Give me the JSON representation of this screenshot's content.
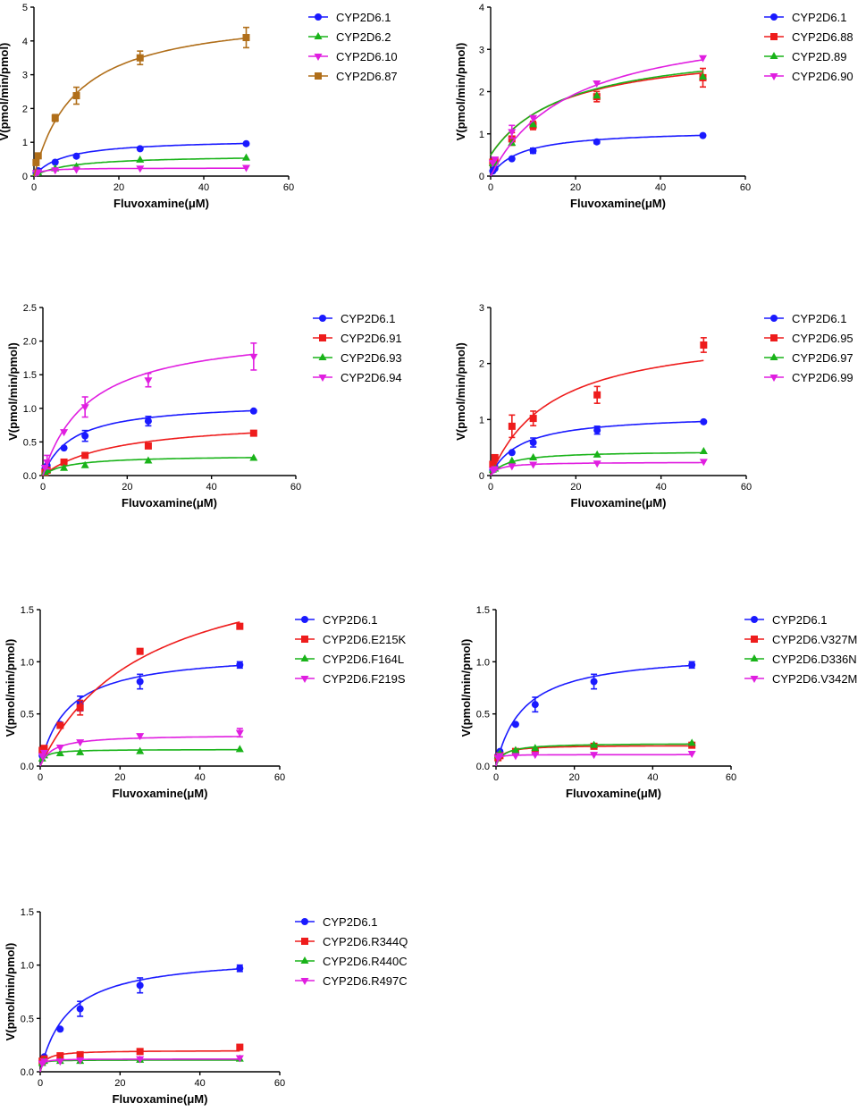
{
  "chart_data": [
    {
      "type": "line",
      "xlabel": "Fluvoxamine(μM)",
      "ylabel": "V(pmol/min/pmol)",
      "xlim": [
        0,
        60
      ],
      "ylim": [
        0,
        5
      ],
      "xticks": [
        0,
        20,
        40,
        60
      ],
      "yticks": [
        0,
        1,
        2,
        3,
        4,
        5
      ],
      "x": [
        0.5,
        1,
        5,
        10,
        25,
        50
      ],
      "series": [
        {
          "name": "CYP2D6.1",
          "color": "#1a1aff",
          "marker": "circle",
          "values": [
            0.1,
            0.16,
            0.41,
            0.59,
            0.81,
            0.96
          ],
          "errors": [
            0,
            0,
            0,
            0,
            0,
            0
          ],
          "vmax": 1.1,
          "km": 7.0,
          "fit_start": 0
        },
        {
          "name": "CYP2D6.2",
          "color": "#19b319",
          "marker": "triangle",
          "values": [
            0.08,
            0.1,
            0.22,
            0.28,
            0.48,
            0.54
          ],
          "errors": [
            0,
            0,
            0,
            0,
            0,
            0
          ],
          "vmax": 0.62,
          "km": 8.5,
          "fit_start": 0
        },
        {
          "name": "CYP2D6.10",
          "color": "#e01ee0",
          "marker": "tridown",
          "values": [
            0.1,
            0.12,
            0.18,
            0.2,
            0.23,
            0.25
          ],
          "errors": [
            0,
            0,
            0,
            0,
            0,
            0
          ],
          "vmax": 0.24,
          "km": 1.5,
          "fit_start": 0
        },
        {
          "name": "CYP2D6.87",
          "color": "#b06e19",
          "marker": "square",
          "values": [
            0.4,
            0.6,
            1.72,
            2.38,
            3.5,
            4.1
          ],
          "errors": [
            0,
            0,
            0.1,
            0.25,
            0.2,
            0.3
          ],
          "vmax": 4.9,
          "km": 10.0,
          "fit_start": 0
        }
      ]
    },
    {
      "type": "line",
      "xlabel": "Fluvoxamine(μM)",
      "ylabel": "V(pmol/min/pmol)",
      "xlim": [
        0,
        60
      ],
      "ylim": [
        0,
        4
      ],
      "xticks": [
        0,
        20,
        40,
        60
      ],
      "yticks": [
        0,
        1,
        2,
        3,
        4
      ],
      "x": [
        0.5,
        1,
        5,
        10,
        25,
        50
      ],
      "series": [
        {
          "name": "CYP2D6.1",
          "color": "#1a1aff",
          "marker": "circle",
          "values": [
            0.12,
            0.18,
            0.41,
            0.6,
            0.81,
            0.96
          ],
          "errors": [
            0,
            0,
            0,
            0.06,
            0.04,
            0
          ],
          "vmax": 1.1,
          "km": 7.0,
          "fit_start": 0
        },
        {
          "name": "CYP2D6.88",
          "color": "#ee1c1c",
          "marker": "square",
          "values": [
            0.33,
            0.36,
            0.88,
            1.2,
            1.88,
            2.33
          ],
          "errors": [
            0,
            0,
            0.15,
            0.1,
            0.12,
            0.22
          ],
          "vmax": 3.1,
          "km": 17.0,
          "fit_start": 0.5
        },
        {
          "name": "CYP2D.89",
          "color": "#19b319",
          "marker": "triangle",
          "values": [
            0.3,
            0.33,
            0.78,
            1.22,
            1.9,
            2.35
          ],
          "errors": [
            0,
            0,
            0,
            0,
            0,
            0
          ],
          "vmax": 3.2,
          "km": 18.0,
          "fit_start": 0.5
        },
        {
          "name": "CYP2D6.90",
          "color": "#e01ee0",
          "marker": "tridown",
          "values": [
            0.32,
            0.4,
            1.05,
            1.38,
            2.2,
            2.8
          ],
          "errors": [
            0,
            0,
            0.15,
            0,
            0,
            0
          ],
          "vmax": 3.8,
          "km": 19.0,
          "fit_start": 0
        }
      ]
    },
    {
      "type": "line",
      "xlabel": "Fluvoxamine(μM)",
      "ylabel": "V(pmol/min/pmol)",
      "xlim": [
        0,
        60
      ],
      "ylim": [
        0,
        2.5
      ],
      "xticks": [
        0,
        20,
        40,
        60
      ],
      "yticks": [
        0.0,
        0.5,
        1.0,
        1.5,
        2.0,
        2.5
      ],
      "x": [
        0.5,
        1,
        5,
        10,
        25,
        50
      ],
      "series": [
        {
          "name": "CYP2D6.1",
          "color": "#1a1aff",
          "marker": "circle",
          "values": [
            0.1,
            0.15,
            0.41,
            0.59,
            0.81,
            0.96
          ],
          "errors": [
            0,
            0,
            0,
            0.08,
            0.07,
            0
          ],
          "vmax": 1.1,
          "km": 7.0,
          "fit_start": 0
        },
        {
          "name": "CYP2D6.91",
          "color": "#ee1c1c",
          "marker": "square",
          "values": [
            0.05,
            0.08,
            0.2,
            0.3,
            0.44,
            0.63
          ],
          "errors": [
            0,
            0,
            0,
            0,
            0,
            0
          ],
          "vmax": 0.85,
          "km": 17.0,
          "fit_start": 0
        },
        {
          "name": "CYP2D6.93",
          "color": "#19b319",
          "marker": "triangle",
          "values": [
            0.05,
            0.08,
            0.11,
            0.15,
            0.22,
            0.26
          ],
          "errors": [
            0,
            0,
            0,
            0,
            0,
            0
          ],
          "vmax": 0.3,
          "km": 6.0,
          "fit_start": 0
        },
        {
          "name": "CYP2D6.94",
          "color": "#e01ee0",
          "marker": "tridown",
          "values": [
            0.12,
            0.2,
            0.65,
            1.02,
            1.42,
            1.77
          ],
          "errors": [
            0,
            0.1,
            0,
            0.15,
            0.1,
            0.2
          ],
          "vmax": 2.2,
          "km": 11.0,
          "fit_start": 0
        }
      ]
    },
    {
      "type": "line",
      "xlabel": "Fluvoxamine(μM)",
      "ylabel": "V(pmol/min/pmol)",
      "xlim": [
        0,
        60
      ],
      "ylim": [
        0,
        3
      ],
      "xticks": [
        0,
        20,
        40,
        60
      ],
      "yticks": [
        0,
        1,
        2,
        3
      ],
      "x": [
        0.5,
        1,
        5,
        10,
        25,
        50
      ],
      "series": [
        {
          "name": "CYP2D6.1",
          "color": "#1a1aff",
          "marker": "circle",
          "values": [
            0.1,
            0.15,
            0.41,
            0.59,
            0.81,
            0.96
          ],
          "errors": [
            0,
            0,
            0,
            0.08,
            0.07,
            0
          ],
          "vmax": 1.1,
          "km": 7.0,
          "fit_start": 0
        },
        {
          "name": "CYP2D6.95",
          "color": "#ee1c1c",
          "marker": "square",
          "values": [
            0.2,
            0.32,
            0.88,
            1.02,
            1.44,
            2.33
          ],
          "errors": [
            0,
            0,
            0.2,
            0.13,
            0.15,
            0.13
          ],
          "vmax": 2.65,
          "km": 14.5,
          "fit_start": 0
        },
        {
          "name": "CYP2D6.97",
          "color": "#19b319",
          "marker": "triangle",
          "values": [
            0.1,
            0.12,
            0.26,
            0.32,
            0.37,
            0.43
          ],
          "errors": [
            0,
            0,
            0,
            0,
            0,
            0
          ],
          "vmax": 0.44,
          "km": 4.0,
          "fit_start": 0
        },
        {
          "name": "CYP2D6.99",
          "color": "#e01ee0",
          "marker": "tridown",
          "values": [
            0.1,
            0.12,
            0.17,
            0.2,
            0.22,
            0.25
          ],
          "errors": [
            0,
            0,
            0,
            0,
            0,
            0
          ],
          "vmax": 0.24,
          "km": 2.0,
          "fit_start": 0
        }
      ]
    },
    {
      "type": "line",
      "xlabel": "Fluvoxamine(μM)",
      "ylabel": "V(pmol/min/pmol)",
      "xlim": [
        0,
        60
      ],
      "ylim": [
        0,
        1.5
      ],
      "xticks": [
        0,
        20,
        40,
        60
      ],
      "yticks": [
        0.0,
        0.5,
        1.0,
        1.5
      ],
      "x": [
        0.5,
        1,
        5,
        10,
        25,
        50
      ],
      "series": [
        {
          "name": "CYP2D6.1",
          "color": "#1a1aff",
          "marker": "circle",
          "values": [
            0.1,
            0.14,
            0.4,
            0.6,
            0.81,
            0.97
          ],
          "errors": [
            0,
            0,
            0,
            0.07,
            0.07,
            0.03
          ],
          "vmax": 1.1,
          "km": 7.0,
          "fit_start": 0
        },
        {
          "name": "CYP2D6.E215K",
          "color": "#ee1c1c",
          "marker": "square",
          "values": [
            0.15,
            0.17,
            0.39,
            0.56,
            1.1,
            1.34
          ],
          "errors": [
            0,
            0,
            0,
            0.07,
            0,
            0
          ],
          "vmax": 2.1,
          "km": 26.0,
          "fit_start": 0
        },
        {
          "name": "CYP2D6.F164L",
          "color": "#19b319",
          "marker": "triangle",
          "values": [
            0.07,
            0.1,
            0.12,
            0.13,
            0.14,
            0.16
          ],
          "errors": [
            0,
            0,
            0,
            0,
            0,
            0
          ],
          "vmax": 0.16,
          "km": 1.0,
          "fit_start": 0
        },
        {
          "name": "CYP2D6.F219S",
          "color": "#e01ee0",
          "marker": "tridown",
          "values": [
            0.1,
            0.13,
            0.18,
            0.23,
            0.29,
            0.32
          ],
          "errors": [
            0,
            0,
            0,
            0,
            0,
            0.04
          ],
          "vmax": 0.3,
          "km": 3.0,
          "fit_start": 0
        }
      ]
    },
    {
      "type": "line",
      "xlabel": "Fluvoxamine(μM)",
      "ylabel": "V(pmol/min/pmol)",
      "xlim": [
        0,
        60
      ],
      "ylim": [
        0,
        1.5
      ],
      "xticks": [
        0,
        20,
        40,
        60
      ],
      "yticks": [
        0.0,
        0.5,
        1.0,
        1.5
      ],
      "x": [
        0.5,
        1,
        5,
        10,
        25,
        50
      ],
      "series": [
        {
          "name": "CYP2D6.1",
          "color": "#1a1aff",
          "marker": "circle",
          "values": [
            0.1,
            0.14,
            0.4,
            0.59,
            0.81,
            0.97
          ],
          "errors": [
            0,
            0,
            0,
            0.07,
            0.07,
            0.03
          ],
          "vmax": 1.1,
          "km": 7.0,
          "fit_start": 0
        },
        {
          "name": "CYP2D6.V327M",
          "color": "#ee1c1c",
          "marker": "square",
          "values": [
            0.08,
            0.1,
            0.14,
            0.15,
            0.19,
            0.2
          ],
          "errors": [
            0,
            0,
            0,
            0,
            0,
            0
          ],
          "vmax": 0.2,
          "km": 1.5,
          "fit_start": 0
        },
        {
          "name": "CYP2D6.D336N",
          "color": "#19b319",
          "marker": "triangle",
          "values": [
            0.1,
            0.12,
            0.15,
            0.17,
            0.2,
            0.22
          ],
          "errors": [
            0,
            0,
            0,
            0,
            0,
            0
          ],
          "vmax": 0.22,
          "km": 2.0,
          "fit_start": 0
        },
        {
          "name": "CYP2D6.V342M",
          "color": "#e01ee0",
          "marker": "tridown",
          "values": [
            0.08,
            0.1,
            0.1,
            0.11,
            0.11,
            0.12
          ],
          "errors": [
            0,
            0,
            0,
            0,
            0,
            0
          ],
          "vmax": 0.11,
          "km": 0.3,
          "fit_start": 0
        }
      ]
    },
    {
      "type": "line",
      "xlabel": "Fluvoxamine(μM)",
      "ylabel": "V(pmol/min/pmol)",
      "xlim": [
        0,
        60
      ],
      "ylim": [
        0,
        1.5
      ],
      "xticks": [
        0,
        20,
        40,
        60
      ],
      "yticks": [
        0.0,
        0.5,
        1.0,
        1.5
      ],
      "x": [
        0.5,
        1,
        5,
        10,
        25,
        50
      ],
      "series": [
        {
          "name": "CYP2D6.1",
          "color": "#1a1aff",
          "marker": "circle",
          "values": [
            0.1,
            0.14,
            0.4,
            0.59,
            0.81,
            0.97
          ],
          "errors": [
            0,
            0,
            0,
            0.07,
            0.07,
            0.03
          ],
          "vmax": 1.1,
          "km": 7.0,
          "fit_start": 0
        },
        {
          "name": "CYP2D6.R344Q",
          "color": "#ee1c1c",
          "marker": "square",
          "values": [
            0.1,
            0.12,
            0.15,
            0.16,
            0.19,
            0.23
          ],
          "errors": [
            0,
            0,
            0,
            0,
            0,
            0
          ],
          "vmax": 0.2,
          "km": 1.2,
          "fit_start": 0
        },
        {
          "name": "CYP2D6.R440C",
          "color": "#19b319",
          "marker": "triangle",
          "values": [
            0.08,
            0.1,
            0.1,
            0.1,
            0.11,
            0.12
          ],
          "errors": [
            0,
            0,
            0,
            0,
            0,
            0
          ],
          "vmax": 0.11,
          "km": 0.3,
          "fit_start": 0
        },
        {
          "name": "CYP2D6.R497C",
          "color": "#e01ee0",
          "marker": "tridown",
          "values": [
            0.08,
            0.1,
            0.1,
            0.11,
            0.12,
            0.13
          ],
          "errors": [
            0,
            0,
            0,
            0,
            0,
            0
          ],
          "vmax": 0.12,
          "km": 0.4,
          "fit_start": 0
        }
      ]
    }
  ]
}
